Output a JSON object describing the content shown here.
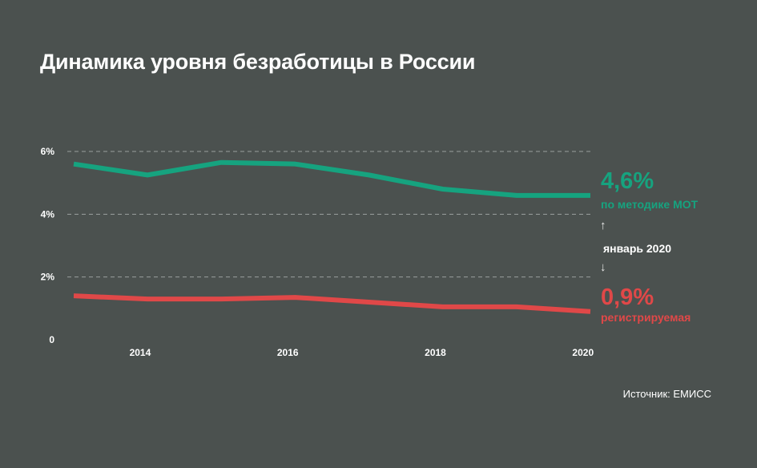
{
  "title": "Динамика уровня безработицы в России",
  "source": "Источник: ЕМИСС",
  "colors": {
    "background": "#4b514f",
    "ilo_series": "#16a37f",
    "registered_series": "#e04848",
    "grid": "#9aa09e"
  },
  "callouts": {
    "ilo_value": "4,6%",
    "ilo_label": "по методике МОТ",
    "month_label": "январь 2020",
    "registered_value": "0,9%",
    "registered_label": "регистрируемая",
    "arrow_up": "↑",
    "arrow_down": "↓"
  },
  "chart_data": {
    "type": "line",
    "title": "Динамика уровня безработицы в России",
    "xlabel": "",
    "ylabel": "",
    "x": [
      2013.1,
      2014.1,
      2015.1,
      2016.1,
      2017.1,
      2018.1,
      2019.1,
      2020.1
    ],
    "x_range": [
      2013.1,
      2020.1
    ],
    "y_range": [
      0,
      6
    ],
    "x_ticks": [
      {
        "value": 2014,
        "label": "2014"
      },
      {
        "value": 2016,
        "label": "2016"
      },
      {
        "value": 2018,
        "label": "2018"
      },
      {
        "value": 2020,
        "label": "2020"
      }
    ],
    "y_ticks": [
      {
        "value": 0,
        "label": "0"
      },
      {
        "value": 2,
        "label": "2%"
      },
      {
        "value": 4,
        "label": "4%"
      },
      {
        "value": 6,
        "label": "6%"
      }
    ],
    "grid": true,
    "series": [
      {
        "key": "ilo",
        "values": [
          5.6,
          5.25,
          5.65,
          5.6,
          5.25,
          4.8,
          4.6,
          4.6
        ]
      },
      {
        "key": "registered",
        "values": [
          1.4,
          1.3,
          1.3,
          1.35,
          1.2,
          1.05,
          1.05,
          0.9
        ]
      }
    ]
  }
}
